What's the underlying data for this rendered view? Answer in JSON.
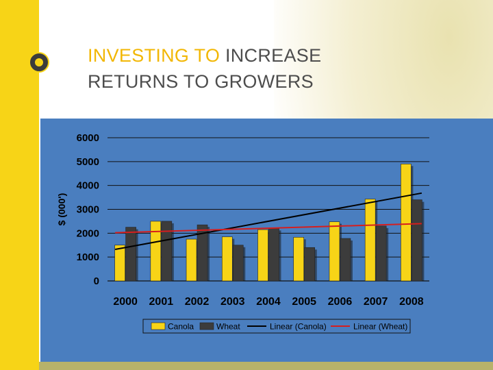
{
  "slide": {
    "title_accent": "INVESTING TO",
    "title_rest_line1": "INCREASE",
    "title_line2": "RETURNS TO GROWERS"
  },
  "icons": {
    "logo": "canola-flower-logo-icon"
  },
  "colors": {
    "canola": "#f7d417",
    "wheat": "#3c3c3c",
    "linear_canola": "#000000",
    "linear_wheat": "#d61e1e",
    "panel": "#4a7ebf",
    "accent": "#f2b705"
  },
  "chart_data": {
    "type": "bar",
    "categories": [
      "2000",
      "2001",
      "2002",
      "2003",
      "2004",
      "2005",
      "2006",
      "2007",
      "2008"
    ],
    "series": [
      {
        "name": "Canola",
        "values": [
          1500,
          2500,
          1750,
          1850,
          2150,
          1830,
          2480,
          3430,
          4900
        ]
      },
      {
        "name": "Wheat",
        "values": [
          2250,
          2500,
          2350,
          1500,
          2200,
          1400,
          1780,
          2300,
          3400
        ]
      }
    ],
    "trendlines": [
      {
        "name": "Linear (Canola)",
        "start": 1320,
        "end": 3680
      },
      {
        "name": "Linear (Wheat)",
        "start": 2020,
        "end": 2400
      }
    ],
    "ylabel": "$ (000')",
    "xlabel": "",
    "ylim": [
      0,
      6000
    ],
    "yticks": [
      "0",
      "1000",
      "2000",
      "3000",
      "4000",
      "5000",
      "6000"
    ],
    "grid": true,
    "legend": [
      "Canola",
      "Wheat",
      "Linear (Canola)",
      "Linear (Wheat)"
    ],
    "legend_position": "bottom"
  }
}
